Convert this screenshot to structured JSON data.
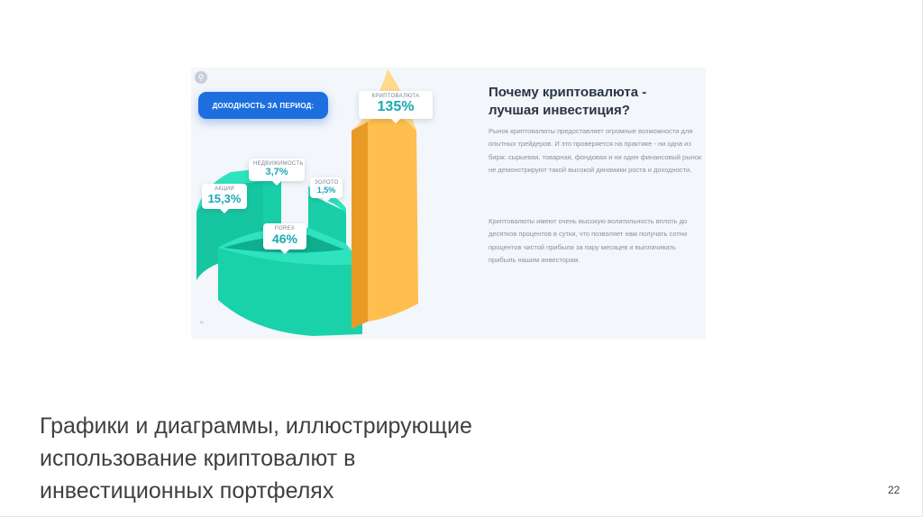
{
  "infographic": {
    "period_label": "ДОХОДНОСТЬ ЗА ПЕРИОД:",
    "corner_icon": "magnifier-icon",
    "corner_mark": "≈",
    "callouts": [
      {
        "label": "КРИПТОВАЛЮТА",
        "value": "135%"
      },
      {
        "label": "НЕДВИЖИМОСТЬ",
        "value": "3,7%"
      },
      {
        "label": "ЗОЛОТО",
        "value": "1,5%"
      },
      {
        "label": "АКЦИИ",
        "value": "15,3%"
      },
      {
        "label": "FOREX",
        "value": "46%"
      }
    ],
    "colors": {
      "teal_top": "#2fe3bf",
      "teal_side": "#16c6a1",
      "orange_front": "#ffbe4d",
      "orange_top": "#ffd98e",
      "accent_blue": "#1d6fe0"
    },
    "title": "Почему криптовалюта - лучшая инвестиция?",
    "paragraph1": "Рынок криптовалюты предоставляет огромные возможности для опытных трейдеров. И это проверяется на практике - ни одна из бирж: сырьевая, товарная, фондовая и ни один финансовый рынок не демонстрируют такой высокой динамики роста и доходности.",
    "paragraph2": "Криптовалюты имеют очень высокую волатильность вплоть до десятков процентов в сутки, что позволяет нам получать сотни процентов чистой прибыли за пару месяцев и выплачивать прибыль нашим инвесторам."
  },
  "slide": {
    "caption_line1": "Графики и диаграммы, иллюстрирующие",
    "caption_line2": "использование криптовалют в",
    "caption_line3": "инвестиционных портфелях",
    "page_number": "22"
  }
}
